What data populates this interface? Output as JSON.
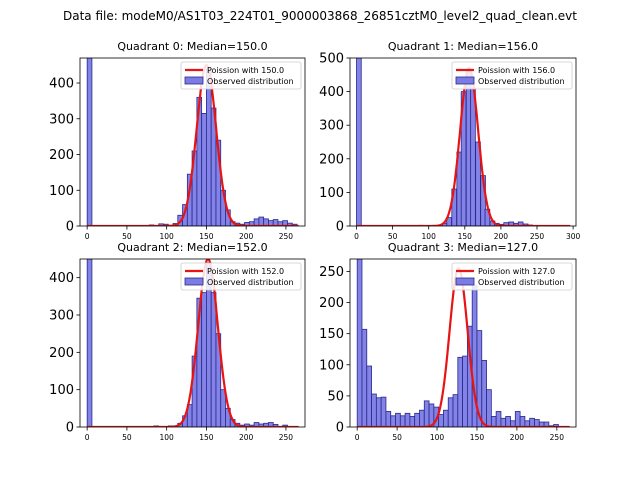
{
  "suptitle": "Data file: modeM0/AS1T03_224T01_9000003868_26851cztM0_level2_quad_clean.evt",
  "colors": {
    "bar_fill": "#7b7be6",
    "bar_edge": "#2a2a8c",
    "line": "#e81414",
    "axis": "#000000"
  },
  "chart_data": [
    {
      "type": "bar",
      "title": "Quadrant 0: Median=150.0",
      "xticks": [
        0,
        50,
        100,
        150,
        200,
        250
      ],
      "yticks": [
        0,
        100,
        200,
        300,
        400
      ],
      "xlim": [
        -9,
        274
      ],
      "ylim": [
        0,
        470
      ],
      "bin_width": 6.0,
      "bins": [
        [
          0,
          470
        ],
        [
          78,
          3
        ],
        [
          90,
          6
        ],
        [
          96,
          5
        ],
        [
          102,
          2
        ],
        [
          108,
          7
        ],
        [
          114,
          30
        ],
        [
          120,
          60
        ],
        [
          126,
          145
        ],
        [
          132,
          210
        ],
        [
          138,
          360
        ],
        [
          144,
          315
        ],
        [
          150,
          440
        ],
        [
          156,
          330
        ],
        [
          162,
          240
        ],
        [
          168,
          100
        ],
        [
          174,
          45
        ],
        [
          180,
          12
        ],
        [
          186,
          8
        ],
        [
          192,
          5
        ],
        [
          198,
          10
        ],
        [
          204,
          12
        ],
        [
          210,
          20
        ],
        [
          216,
          25
        ],
        [
          222,
          20
        ],
        [
          228,
          15
        ],
        [
          234,
          18
        ],
        [
          240,
          12
        ],
        [
          246,
          15
        ],
        [
          252,
          8
        ],
        [
          258,
          5
        ]
      ],
      "poisson_mean": 150.0,
      "poisson_peak": 450,
      "legend": {
        "line": "Poission with 150.0",
        "bars": "Observed distribution"
      }
    },
    {
      "type": "bar",
      "title": "Quadrant 1: Median=156.0",
      "xticks": [
        0,
        50,
        100,
        150,
        200,
        250,
        300
      ],
      "yticks": [
        0,
        100,
        200,
        300,
        400,
        500
      ],
      "xlim": [
        -9,
        304
      ],
      "ylim": [
        0,
        500
      ],
      "bin_width": 6.6,
      "bins": [
        [
          0,
          500
        ],
        [
          86,
          2
        ],
        [
          119,
          8
        ],
        [
          125,
          25
        ],
        [
          132,
          110
        ],
        [
          139,
          220
        ],
        [
          145,
          400
        ],
        [
          152,
          460
        ],
        [
          158,
          410
        ],
        [
          165,
          250
        ],
        [
          172,
          150
        ],
        [
          178,
          50
        ],
        [
          185,
          15
        ],
        [
          191,
          8
        ],
        [
          198,
          5
        ],
        [
          204,
          10
        ],
        [
          211,
          12
        ],
        [
          218,
          8
        ],
        [
          224,
          12
        ],
        [
          231,
          6
        ],
        [
          237,
          3
        ]
      ],
      "poisson_mean": 156.0,
      "poisson_peak": 470,
      "legend": {
        "line": "Poission with 156.0",
        "bars": "Observed distribution"
      }
    },
    {
      "type": "bar",
      "title": "Quadrant 2: Median=152.0",
      "xticks": [
        0,
        50,
        100,
        150,
        200,
        250
      ],
      "yticks": [
        0,
        100,
        200,
        300,
        400
      ],
      "xlim": [
        -9,
        274
      ],
      "ylim": [
        0,
        450
      ],
      "bin_width": 6.0,
      "bins": [
        [
          0,
          450
        ],
        [
          84,
          3
        ],
        [
          102,
          3
        ],
        [
          108,
          3
        ],
        [
          114,
          10
        ],
        [
          120,
          30
        ],
        [
          126,
          60
        ],
        [
          132,
          190
        ],
        [
          138,
          345
        ],
        [
          144,
          360
        ],
        [
          150,
          440
        ],
        [
          156,
          360
        ],
        [
          162,
          250
        ],
        [
          168,
          100
        ],
        [
          174,
          50
        ],
        [
          180,
          20
        ],
        [
          186,
          10
        ],
        [
          192,
          5
        ],
        [
          198,
          8
        ],
        [
          204,
          5
        ],
        [
          210,
          12
        ],
        [
          216,
          8
        ],
        [
          222,
          10
        ],
        [
          228,
          12
        ],
        [
          234,
          7
        ],
        [
          246,
          5
        ]
      ],
      "poisson_mean": 152.0,
      "poisson_peak": 450,
      "legend": {
        "line": "Poission with 152.0",
        "bars": "Observed distribution"
      }
    },
    {
      "type": "bar",
      "title": "Quadrant 3: Median=127.0",
      "xticks": [
        0,
        50,
        100,
        150,
        200,
        250
      ],
      "yticks": [
        0,
        50,
        100,
        150,
        200,
        250
      ],
      "xlim": [
        -9,
        274
      ],
      "ylim": [
        0,
        270
      ],
      "bin_width": 6.0,
      "bins": [
        [
          0,
          270
        ],
        [
          6,
          157
        ],
        [
          12,
          98
        ],
        [
          18,
          53
        ],
        [
          24,
          47
        ],
        [
          30,
          48
        ],
        [
          36,
          25
        ],
        [
          42,
          18
        ],
        [
          48,
          22
        ],
        [
          54,
          18
        ],
        [
          60,
          22
        ],
        [
          66,
          17
        ],
        [
          72,
          22
        ],
        [
          78,
          27
        ],
        [
          84,
          42
        ],
        [
          90,
          37
        ],
        [
          96,
          32
        ],
        [
          102,
          20
        ],
        [
          108,
          27
        ],
        [
          114,
          47
        ],
        [
          120,
          52
        ],
        [
          126,
          112
        ],
        [
          132,
          114
        ],
        [
          138,
          162
        ],
        [
          144,
          227
        ],
        [
          150,
          155
        ],
        [
          156,
          107
        ],
        [
          162,
          60
        ],
        [
          168,
          17
        ],
        [
          174,
          25
        ],
        [
          180,
          14
        ],
        [
          186,
          17
        ],
        [
          192,
          10
        ],
        [
          198,
          25
        ],
        [
          204,
          17
        ],
        [
          210,
          10
        ],
        [
          216,
          14
        ],
        [
          222,
          12
        ],
        [
          228,
          8
        ],
        [
          234,
          8
        ],
        [
          240,
          2
        ],
        [
          246,
          4
        ]
      ],
      "poisson_mean": 127.0,
      "poisson_peak": 255,
      "legend": {
        "line": "Poission with 127.0",
        "bars": "Observed distribution"
      }
    }
  ]
}
